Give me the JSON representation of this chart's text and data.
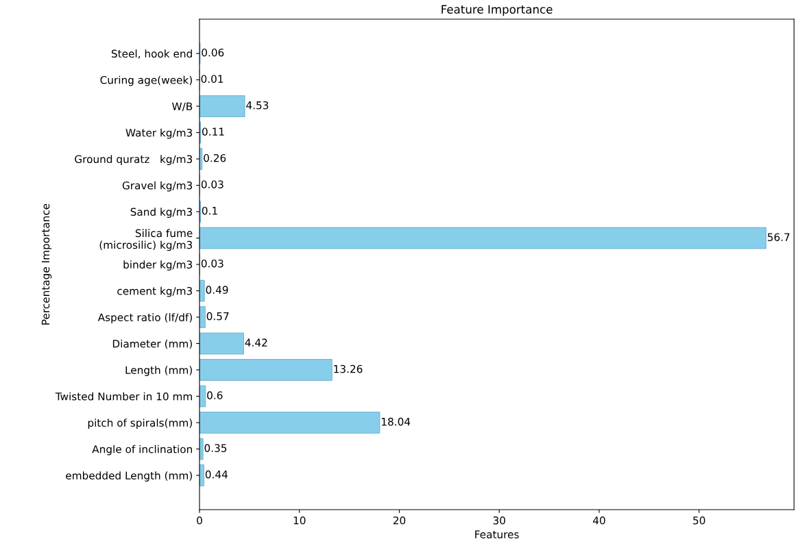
{
  "chart_data": {
    "type": "bar",
    "orientation": "horizontal",
    "title": "Feature Importance",
    "xlabel": "Features",
    "ylabel": "Percentage Importance",
    "categories": [
      "Steel, hook end",
      "Curing age(week)",
      "W/B",
      "Water kg/m3",
      "Ground quratz   kg/m3",
      "Gravel kg/m3",
      "Sand kg/m3",
      "Silica fume\n(microsilic) kg/m3",
      "binder kg/m3",
      "cement kg/m3",
      "Aspect ratio (lf/df)",
      "Diameter (mm)",
      "Length (mm)",
      "Twisted Number in 10 mm",
      "pitch of spirals(mm)",
      "Angle of inclination",
      "embedded Length (mm)"
    ],
    "values": [
      0.06,
      0.01,
      4.53,
      0.11,
      0.26,
      0.03,
      0.1,
      56.7,
      0.03,
      0.49,
      0.57,
      4.42,
      13.26,
      0.6,
      18.04,
      0.35,
      0.44
    ],
    "color": "#87ceeb",
    "data_labels": true,
    "xlim": [
      0,
      59.5
    ],
    "xticks": [
      0,
      10,
      20,
      30,
      40,
      50
    ],
    "grid": false
  }
}
